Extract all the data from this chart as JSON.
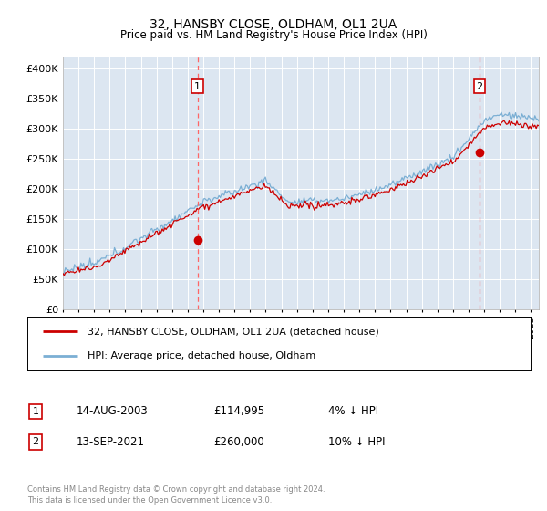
{
  "title": "32, HANSBY CLOSE, OLDHAM, OL1 2UA",
  "subtitle": "Price paid vs. HM Land Registry's House Price Index (HPI)",
  "ylim": [
    0,
    420000
  ],
  "yticks": [
    0,
    50000,
    100000,
    150000,
    200000,
    250000,
    300000,
    350000,
    400000
  ],
  "ytick_labels": [
    "£0",
    "£50K",
    "£100K",
    "£150K",
    "£200K",
    "£250K",
    "£300K",
    "£350K",
    "£400K"
  ],
  "plot_bg_color": "#dce6f1",
  "hpi_color": "#7bafd4",
  "price_color": "#cc0000",
  "marker_color": "#cc0000",
  "vline_color": "#ff6666",
  "annotation_box_edgecolor": "#cc0000",
  "legend_label_price": "32, HANSBY CLOSE, OLDHAM, OL1 2UA (detached house)",
  "legend_label_hpi": "HPI: Average price, detached house, Oldham",
  "transaction1_date": "14-AUG-2003",
  "transaction1_price": "£114,995",
  "transaction1_info": "4% ↓ HPI",
  "transaction1_year": 2003.62,
  "transaction2_date": "13-SEP-2021",
  "transaction2_price": "£260,000",
  "transaction2_info": "10% ↓ HPI",
  "transaction2_year": 2021.71,
  "price1": 114995,
  "price2": 260000,
  "footer": "Contains HM Land Registry data © Crown copyright and database right 2024.\nThis data is licensed under the Open Government Licence v3.0.",
  "xmin": 1995.0,
  "xmax": 2025.5
}
